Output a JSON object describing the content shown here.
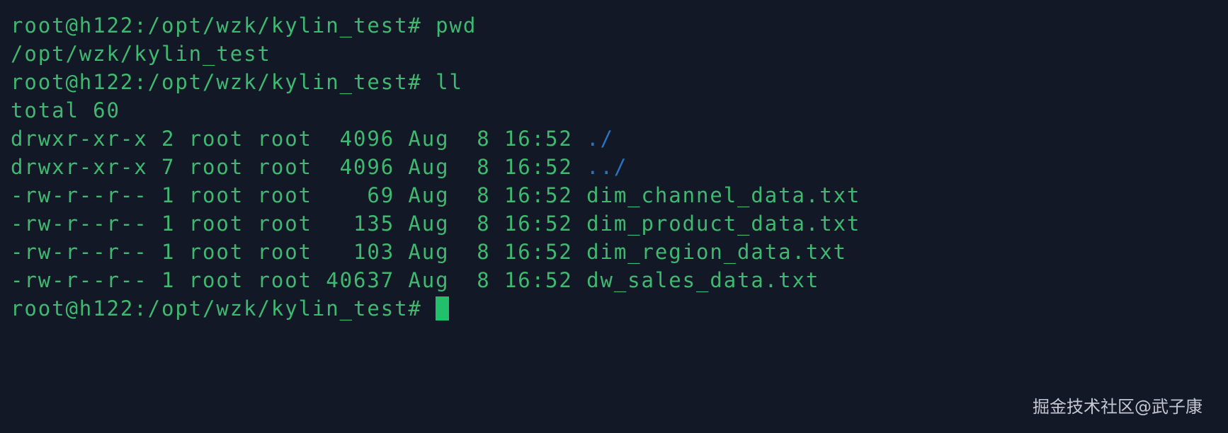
{
  "colors": {
    "background": "#131827",
    "text": "#3fb870",
    "directory": "#2a73c0",
    "cursor": "#22c06a"
  },
  "terminal": {
    "lines": [
      {
        "text": "root@h122:/opt/wzk/kylin_test# pwd",
        "name": ""
      },
      {
        "text": "/opt/wzk/kylin_test",
        "name": ""
      },
      {
        "text": "root@h122:/opt/wzk/kylin_test# ll",
        "name": ""
      },
      {
        "text": "total 60",
        "name": ""
      },
      {
        "text": "drwxr-xr-x 2 root root  4096 Aug  8 16:52 ",
        "name": "./"
      },
      {
        "text": "drwxr-xr-x 7 root root  4096 Aug  8 16:52 ",
        "name": "../"
      },
      {
        "text": "-rw-r--r-- 1 root root    69 Aug  8 16:52 dim_channel_data.txt",
        "name": ""
      },
      {
        "text": "-rw-r--r-- 1 root root   135 Aug  8 16:52 dim_product_data.txt",
        "name": ""
      },
      {
        "text": "-rw-r--r-- 1 root root   103 Aug  8 16:52 dim_region_data.txt",
        "name": ""
      },
      {
        "text": "-rw-r--r-- 1 root root 40637 Aug  8 16:52 dw_sales_data.txt",
        "name": ""
      }
    ],
    "prompt": "root@h122:/opt/wzk/kylin_test# "
  },
  "watermark": "掘金技术社区@武子康"
}
